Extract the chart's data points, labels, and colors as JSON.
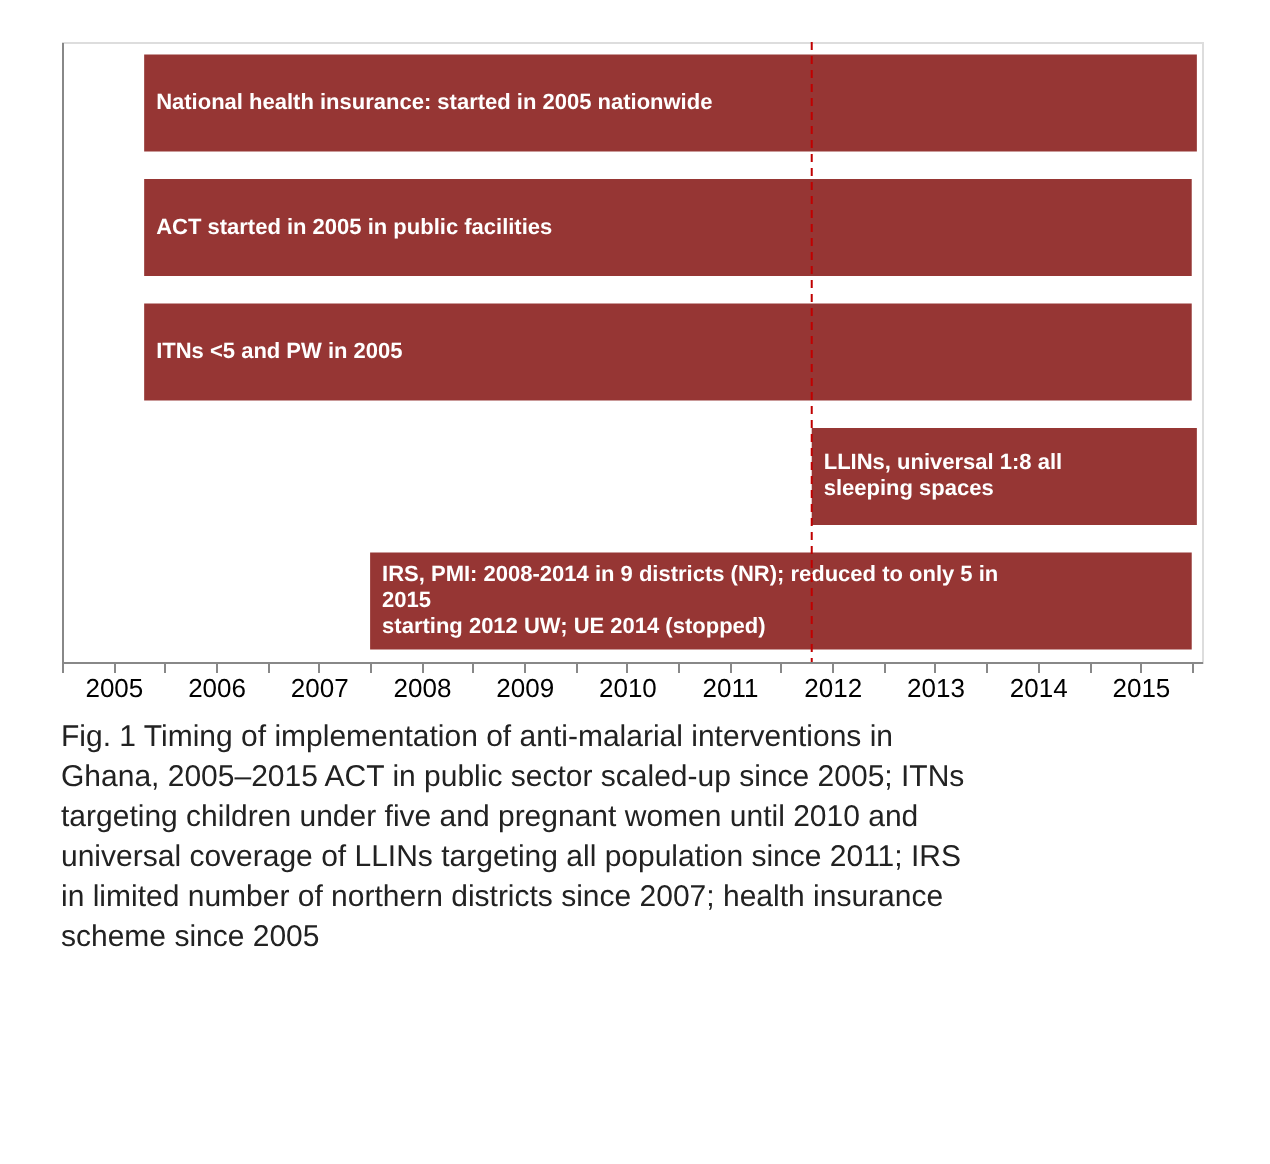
{
  "chart_data": {
    "type": "bar",
    "orientation": "horizontal",
    "categories": [
      "National health insurance:  started in 2005 nationwide",
      "ACT started in 2005 in public facilities",
      "ITNs <5 and PW in 2005",
      "LLINs, universal  1:8 all\nsleeping spaces",
      "IRS, PMI: 2008-2014  in 9 districts (NR); reduced to only 5 in\n2015\nstarting 2012 UW; UE 2014 (stopped)"
    ],
    "base": [
      2005.8,
      2005.8,
      2005.8,
      2012.3,
      2008.0
    ],
    "values": [
      10.25,
      10.2,
      10.2,
      3.75,
      8.0
    ],
    "color": "#963634",
    "xlim": [
      2005,
      2016.1
    ],
    "xticks": [
      {
        "value": 2005,
        "label": null
      },
      {
        "value": 2005.5,
        "label": "2005"
      },
      {
        "value": 2006,
        "label": null
      },
      {
        "value": 2006.5,
        "label": "2006"
      },
      {
        "value": 2007,
        "label": null
      },
      {
        "value": 2007.5,
        "label": "2007"
      },
      {
        "value": 2008,
        "label": null
      },
      {
        "value": 2008.5,
        "label": "2008"
      },
      {
        "value": 2009,
        "label": null
      },
      {
        "value": 2009.5,
        "label": "2009"
      },
      {
        "value": 2010,
        "label": null
      },
      {
        "value": 2010.5,
        "label": "2010"
      },
      {
        "value": 2011,
        "label": null
      },
      {
        "value": 2011.5,
        "label": "2011"
      },
      {
        "value": 2012,
        "label": null
      },
      {
        "value": 2012.5,
        "label": "2012"
      },
      {
        "value": 2013,
        "label": null
      },
      {
        "value": 2013.5,
        "label": "2013"
      },
      {
        "value": 2014,
        "label": null
      },
      {
        "value": 2014.5,
        "label": "2014"
      },
      {
        "value": 2015,
        "label": null
      },
      {
        "value": 2015.5,
        "label": "2015"
      },
      {
        "value": 2016,
        "label": null
      }
    ],
    "tick_labels": "x",
    "grid": false,
    "ref_lines": [
      {
        "axis": "x",
        "value": 2012.3,
        "color": "#c00000",
        "line_style": "dashed"
      }
    ],
    "annotations": [
      "Fig. 1  Timing of implementation of anti-malarial interventions in Ghana, 2005–2015 ACT in public sector scaled-up since 2005; ITNs targeting children under five and pregnant women until 2010 and universal coverage of LLINs targeting all population since 2011; IRS in limited number of northern districts since 2007; health insurance scheme since 2005"
    ]
  }
}
